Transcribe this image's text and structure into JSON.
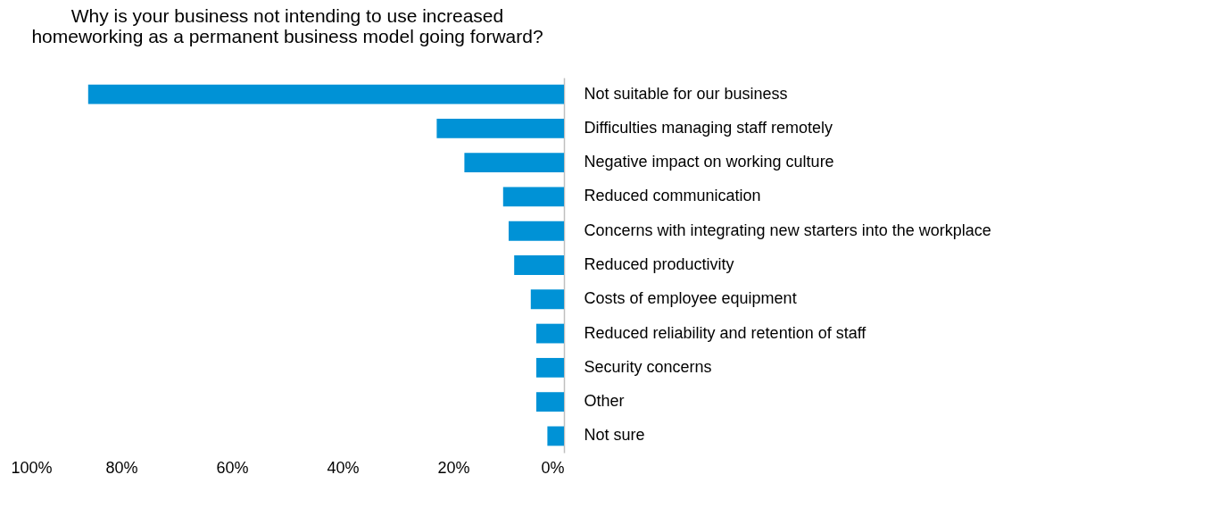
{
  "chart_data": {
    "type": "bar",
    "orientation": "horizontal",
    "title": [
      "Why is your business not intending to use increased",
      "homeworking as a permanent business model going forward?"
    ],
    "categories": [
      "Not suitable for our business",
      "Difficulties managing staff remotely",
      "Negative impact on working culture",
      "Reduced communication",
      "Concerns with integrating new starters into the workplace",
      "Reduced productivity",
      "Costs of employee equipment",
      "Reduced reliability and retention of staff",
      "Security concerns",
      "Other",
      "Not sure"
    ],
    "values": [
      86,
      23,
      18,
      11,
      10,
      9,
      6,
      5,
      5,
      5,
      3
    ],
    "color": "#0092d6",
    "xlim": [
      100,
      0
    ],
    "xticks": [
      {
        "value": 100,
        "label": "100%"
      },
      {
        "value": 80,
        "label": "80%"
      },
      {
        "value": 60,
        "label": "60%"
      },
      {
        "value": 40,
        "label": "40%"
      },
      {
        "value": 20,
        "label": "20%"
      },
      {
        "value": 0,
        "label": "0%"
      }
    ],
    "grid": false
  }
}
